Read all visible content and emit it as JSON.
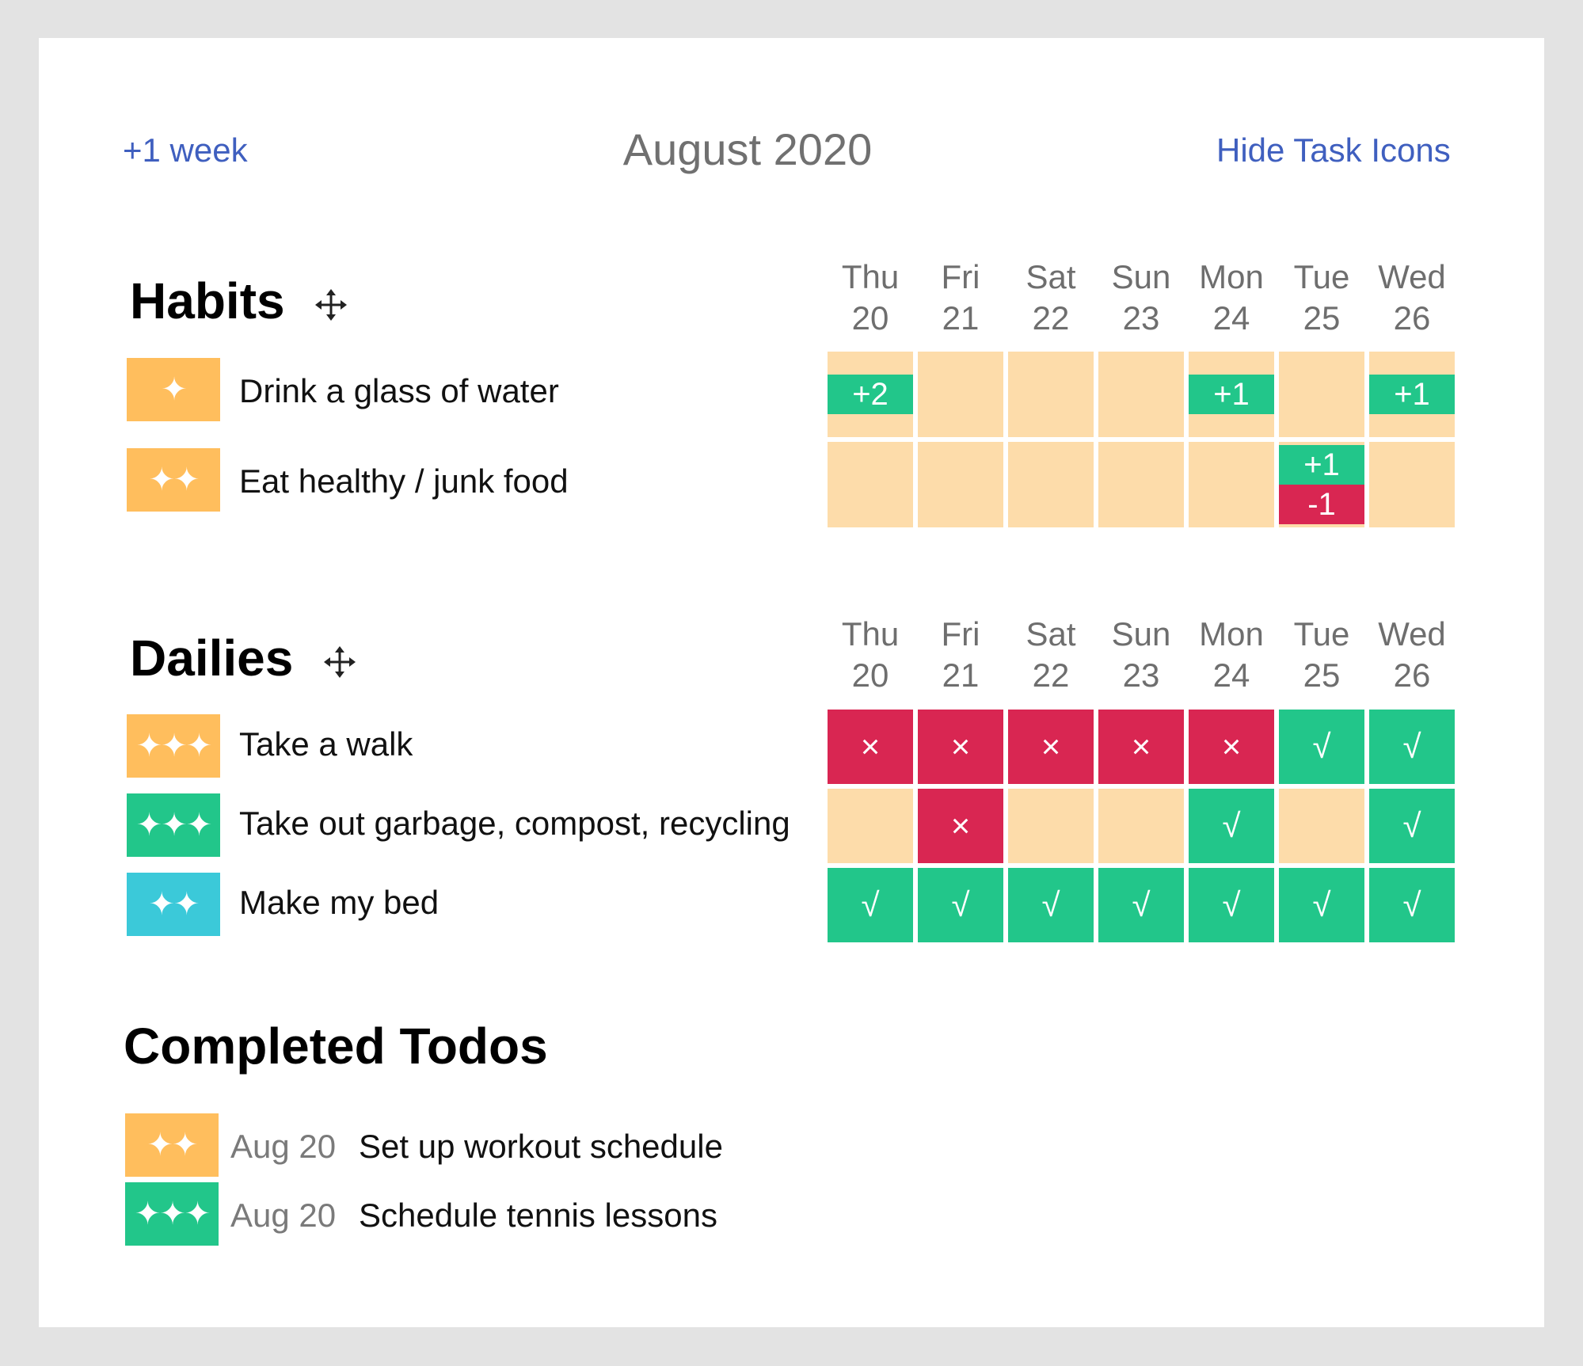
{
  "header": {
    "prev_week_label": "+1 week",
    "month_title": "August 2020",
    "hide_icons_label": "Hide Task Icons"
  },
  "days": [
    {
      "dow": "Thu",
      "date": "20"
    },
    {
      "dow": "Fri",
      "date": "21"
    },
    {
      "dow": "Sat",
      "date": "22"
    },
    {
      "dow": "Sun",
      "date": "23"
    },
    {
      "dow": "Mon",
      "date": "24"
    },
    {
      "dow": "Tue",
      "date": "25"
    },
    {
      "dow": "Wed",
      "date": "26"
    }
  ],
  "habits": {
    "title": "Habits",
    "items": [
      {
        "label": "Drink a glass of water",
        "icon": "✦",
        "icon_name": "sparkle-1-icon",
        "icon_color": "#ffbe5d",
        "cells": [
          {
            "plus": "+2",
            "minus": ""
          },
          {
            "plus": "",
            "minus": ""
          },
          {
            "plus": "",
            "minus": ""
          },
          {
            "plus": "",
            "minus": ""
          },
          {
            "plus": "+1",
            "minus": ""
          },
          {
            "plus": "",
            "minus": ""
          },
          {
            "plus": "+1",
            "minus": ""
          }
        ]
      },
      {
        "label": "Eat healthy / junk food",
        "icon": "✦✦",
        "icon_name": "sparkle-2-icon",
        "icon_color": "#ffbe5d",
        "cells": [
          {
            "plus": "",
            "minus": ""
          },
          {
            "plus": "",
            "minus": ""
          },
          {
            "plus": "",
            "minus": ""
          },
          {
            "plus": "",
            "minus": ""
          },
          {
            "plus": "",
            "minus": ""
          },
          {
            "plus": "+1",
            "minus": "-1"
          },
          {
            "plus": "",
            "minus": ""
          }
        ]
      }
    ]
  },
  "dailies": {
    "title": "Dailies",
    "items": [
      {
        "label": "Take a walk",
        "icon": "✦✦✦",
        "icon_name": "sparkle-3-icon",
        "icon_color": "#ffbe5d",
        "cells": [
          "x",
          "x",
          "x",
          "x",
          "x",
          "check",
          "check"
        ]
      },
      {
        "label": "Take out garbage, compost, recycling",
        "icon": "✦✦✦",
        "icon_name": "sparkle-3-icon",
        "icon_color": "#22c68a",
        "cells": [
          "",
          "x",
          "",
          "",
          "check",
          "",
          "check"
        ]
      },
      {
        "label": "Make my bed",
        "icon": "✦✦",
        "icon_name": "sparkle-2-icon",
        "icon_color": "#3bc9d9",
        "cells": [
          "check",
          "check",
          "check",
          "check",
          "check",
          "check",
          "check"
        ]
      }
    ]
  },
  "marks": {
    "x": "×",
    "check": "√"
  },
  "todos": {
    "title": "Completed Todos",
    "items": [
      {
        "date": "Aug 20",
        "label": "Set up workout schedule",
        "icon": "✦✦",
        "icon_name": "sparkle-2-icon",
        "icon_color": "#ffbe5d"
      },
      {
        "date": "Aug 20",
        "label": "Schedule tennis lessons",
        "icon": "✦✦✦",
        "icon_name": "sparkle-3-icon",
        "icon_color": "#22c68a"
      }
    ]
  },
  "colors": {
    "empty_cell": "#fddcaa",
    "success": "#22c68a",
    "fail": "#d92652",
    "link": "#3f5fbf"
  }
}
